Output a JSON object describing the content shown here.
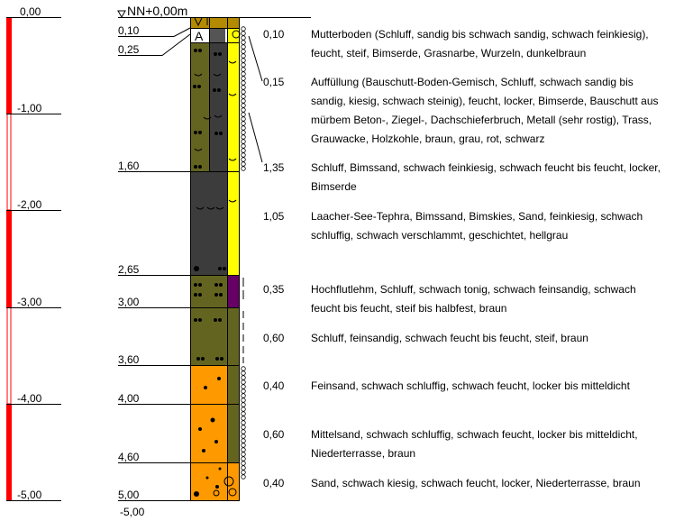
{
  "datum_label": "NN+0,00m",
  "scale_ticks": [
    "0,00",
    "-1,00",
    "-2,00",
    "-3,00",
    "-4,00",
    "-5,00"
  ],
  "depth_labels": [
    "0,10",
    "0,25",
    "1,60",
    "2,65",
    "3,00",
    "3,60",
    "4,00",
    "4,60",
    "5,00"
  ],
  "bottom_label": "-5,00",
  "column_letter": "A",
  "layers": [
    {
      "thickness": "0,10",
      "lines": [
        "Mutterboden (Schluff, sandig bis schwach sandig, schwach feinkiesig),",
        "feucht, steif, Bimserde, Grasnarbe, Wurzeln, dunkelbraun"
      ]
    },
    {
      "thickness": "0,15",
      "lines": [
        "Auffüllung (Bauschutt-Boden-Gemisch, Schluff, schwach sandig bis",
        "sandig, kiesig, schwach steinig), feucht, locker, Bimserde, Bauschutt aus",
        "mürbem Beton-, Ziegel-, Dachschieferbruch, Metall (sehr rostig), Trass,",
        "Grauwacke, Holzkohle, braun, grau, rot, schwarz"
      ]
    },
    {
      "thickness": "1,35",
      "lines": [
        "Schluff, Bimssand, schwach feinkiesig, schwach feucht bis feucht, locker,",
        "Bimserde"
      ]
    },
    {
      "thickness": "1,05",
      "lines": [
        "Laacher-See-Tephra, Bimssand, Bimskies, Sand, feinkiesig, schwach",
        "schluffig, schwach verschlammt, geschichtet, hellgrau"
      ]
    },
    {
      "thickness": "0,35",
      "lines": [
        "Hochflutlehm, Schluff, schwach tonig, schwach feinsandig, schwach",
        "feucht bis feucht, steif bis halbfest, braun"
      ]
    },
    {
      "thickness": "0,60",
      "lines": [
        "Schluff, feinsandig, schwach feucht bis feucht, steif, braun"
      ]
    },
    {
      "thickness": "0,40",
      "lines": [
        "Feinsand, schwach schluffig, schwach feucht, locker bis mitteldicht"
      ]
    },
    {
      "thickness": "0,60",
      "lines": [
        "Mittelsand, schwach schluffig, schwach feucht, locker bis mitteldicht,",
        "Niederterrasse, braun"
      ]
    },
    {
      "thickness": "0,40",
      "lines": [
        "Sand, schwach kiesig, schwach feucht, locker, Niederterrasse, braun"
      ]
    }
  ],
  "colors": {
    "scale_red": "#ff0000",
    "olive": "#646421",
    "dark_grey": "#3c3c3c",
    "yellow": "#ffff00",
    "orange": "#ff9900",
    "purple": "#660066",
    "topsoil": "#b38a00"
  }
}
